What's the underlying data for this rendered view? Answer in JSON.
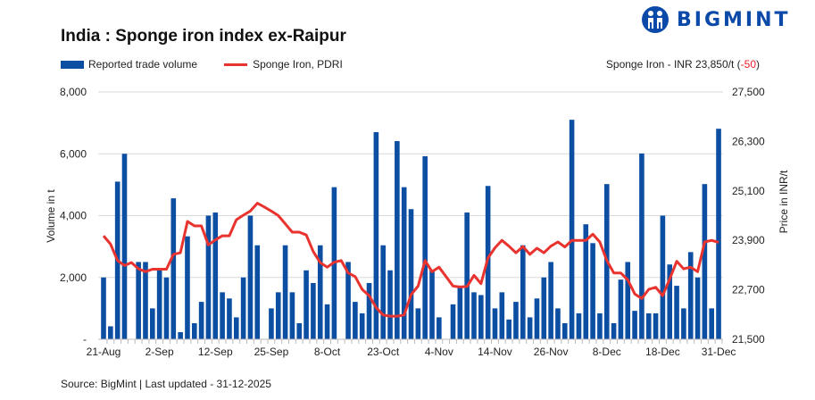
{
  "header": {
    "title": "India : Sponge iron index ex-Raipur",
    "logo_text": "BIGMINT"
  },
  "legend": {
    "bar_label": "Reported trade volume",
    "line_label": "Sponge Iron, PDRI"
  },
  "price_note": {
    "prefix": "Sponge Iron - INR 23,850/t (",
    "change": "-50",
    "suffix": ")"
  },
  "footer": {
    "source": "Source: BigMint | Last updated - 31-12-2025"
  },
  "colors": {
    "bars": "#0b4ea2",
    "line": "#e8332f",
    "negative": "#e8202a",
    "brand": "#0b4aa8"
  },
  "chart_data": {
    "type": "bar+line",
    "title": "India : Sponge iron index ex-Raipur",
    "ylabel": "Volume in t",
    "y2label": "Price in INR/t",
    "ylim": [
      0,
      8000
    ],
    "y2lim": [
      21500,
      27500
    ],
    "yticks": [
      "-",
      "2,000",
      "4,000",
      "6,000",
      "8,000"
    ],
    "y2ticks": [
      "21,500",
      "22,700",
      "23,900",
      "25,100",
      "26,300",
      "27,500"
    ],
    "grid": true,
    "legend_position": "top-left",
    "x_tick_labels": [
      "21-Aug",
      "2-Sep",
      "12-Sep",
      "25-Sep",
      "8-Oct",
      "23-Oct",
      "4-Nov",
      "14-Nov",
      "26-Nov",
      "8-Dec",
      "18-Dec",
      "31-Dec"
    ],
    "series": [
      {
        "name": "Reported trade volume",
        "type": "bar",
        "axis": "left",
        "values": [
          2000,
          420,
          5100,
          6000,
          0,
          2500,
          2500,
          1000,
          2270,
          2000,
          4560,
          230,
          3330,
          520,
          1210,
          4000,
          4100,
          1520,
          1320,
          710,
          2000,
          4000,
          3040,
          0,
          1000,
          1520,
          3040,
          1520,
          520,
          2230,
          1820,
          3040,
          1130,
          4920,
          0,
          2500,
          1210,
          840,
          1820,
          6700,
          3040,
          2230,
          6410,
          4920,
          4210,
          1000,
          5920,
          2230,
          710,
          0,
          1130,
          1730,
          4100,
          1520,
          1430,
          4960,
          1000,
          1520,
          640,
          1210,
          3040,
          710,
          1320,
          2000,
          2500,
          1000,
          520,
          7100,
          840,
          3720,
          3110,
          840,
          5020,
          520,
          1930,
          2500,
          920,
          6010,
          840,
          840,
          4000,
          2420,
          1730,
          1000,
          2820,
          2000,
          5020,
          1000,
          6810
        ]
      },
      {
        "name": "Sponge Iron, PDRI",
        "type": "line",
        "axis": "right",
        "values": [
          24010,
          23810,
          23410,
          23290,
          23360,
          23210,
          23140,
          23200,
          23200,
          23200,
          23560,
          23600,
          24360,
          24250,
          24250,
          23790,
          23910,
          24010,
          24010,
          24400,
          24510,
          24610,
          24800,
          24710,
          24610,
          24500,
          24300,
          24100,
          24100,
          24030,
          23630,
          23360,
          23250,
          23370,
          23410,
          23110,
          23020,
          22710,
          22560,
          22270,
          22090,
          22060,
          22060,
          22090,
          22580,
          22790,
          23410,
          23140,
          23250,
          23020,
          22790,
          22770,
          22780,
          23050,
          22850,
          23470,
          23720,
          23900,
          23760,
          23600,
          23750,
          23560,
          23710,
          23600,
          23760,
          23860,
          23740,
          23900,
          23900,
          23900,
          24050,
          23860,
          23410,
          23110,
          23110,
          22940,
          22600,
          22490,
          22710,
          22760,
          22560,
          22960,
          23390,
          23210,
          23250,
          23140,
          23860,
          23900,
          23850
        ]
      }
    ]
  }
}
